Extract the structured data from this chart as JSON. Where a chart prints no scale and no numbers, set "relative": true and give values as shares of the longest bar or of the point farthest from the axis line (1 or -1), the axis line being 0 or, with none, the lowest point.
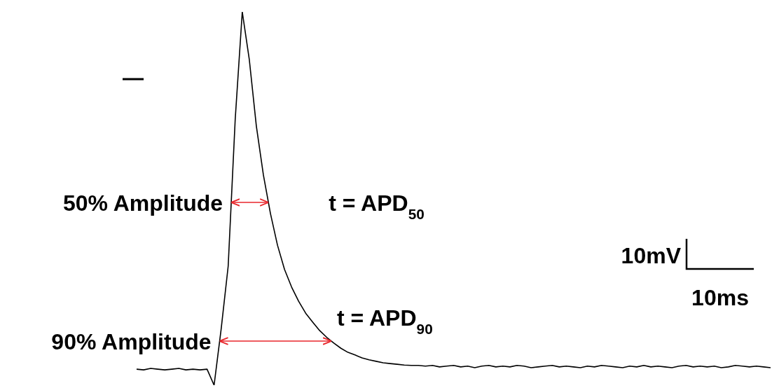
{
  "chart_data": {
    "type": "line",
    "relative": true,
    "categories": [
      null,
      null,
      null,
      null,
      null,
      null,
      null,
      null,
      null,
      null,
      null,
      null,
      null,
      null,
      null,
      null,
      null,
      null,
      null,
      null,
      null,
      null,
      null,
      null,
      null,
      null,
      null,
      null,
      null,
      null,
      null,
      null,
      null,
      null,
      null,
      null,
      null,
      null,
      null,
      null,
      null,
      null,
      null,
      null,
      null,
      null,
      null,
      null,
      null,
      null,
      null,
      null,
      null,
      null,
      null,
      null,
      null,
      null,
      null,
      null,
      null,
      null,
      null,
      null,
      null,
      null,
      null,
      null,
      null,
      null,
      null,
      null,
      null,
      null,
      null,
      null,
      null,
      null,
      null,
      null,
      null,
      null,
      null,
      null,
      null,
      null,
      null,
      null,
      null,
      null,
      null
    ],
    "series": [
      {
        "color": "#000000",
        "values": [
          0.043,
          0.041,
          0.045,
          0.043,
          0.041,
          0.043,
          0.045,
          0.041,
          0.043,
          0.041,
          0.043,
          0,
          0.15,
          0.319,
          0.713,
          1,
          0.872,
          0.694,
          0.563,
          0.46,
          0.375,
          0.31,
          0.263,
          0.225,
          0.193,
          0.169,
          0.146,
          0.128,
          0.113,
          0.099,
          0.088,
          0.081,
          0.073,
          0.068,
          0.064,
          0.06,
          0.058,
          0.056,
          0.054,
          0.053,
          0.053,
          0.051,
          0.053,
          0.049,
          0.051,
          0.053,
          0.049,
          0.051,
          0.047,
          0.051,
          0.053,
          0.049,
          0.051,
          0.049,
          0.053,
          0.051,
          0.047,
          0.049,
          0.051,
          0.053,
          0.049,
          0.051,
          0.049,
          0.047,
          0.051,
          0.049,
          0.053,
          0.051,
          0.049,
          0.047,
          0.051,
          0.049,
          0.053,
          0.049,
          0.051,
          0.049,
          0.047,
          0.051,
          0.053,
          0.049,
          0.051,
          0.049,
          0.051,
          0.047,
          0.049,
          0.053,
          0.051,
          0.049,
          0.051,
          0.049,
          0.047
        ]
      }
    ],
    "marker": "none",
    "grid": false,
    "legend": false,
    "annotations": [
      "50% Amplitude",
      "t = APD$_{50}$",
      "90% Amplitude",
      "t = APD$_{90}$",
      "10mV",
      "10ms"
    ]
  }
}
